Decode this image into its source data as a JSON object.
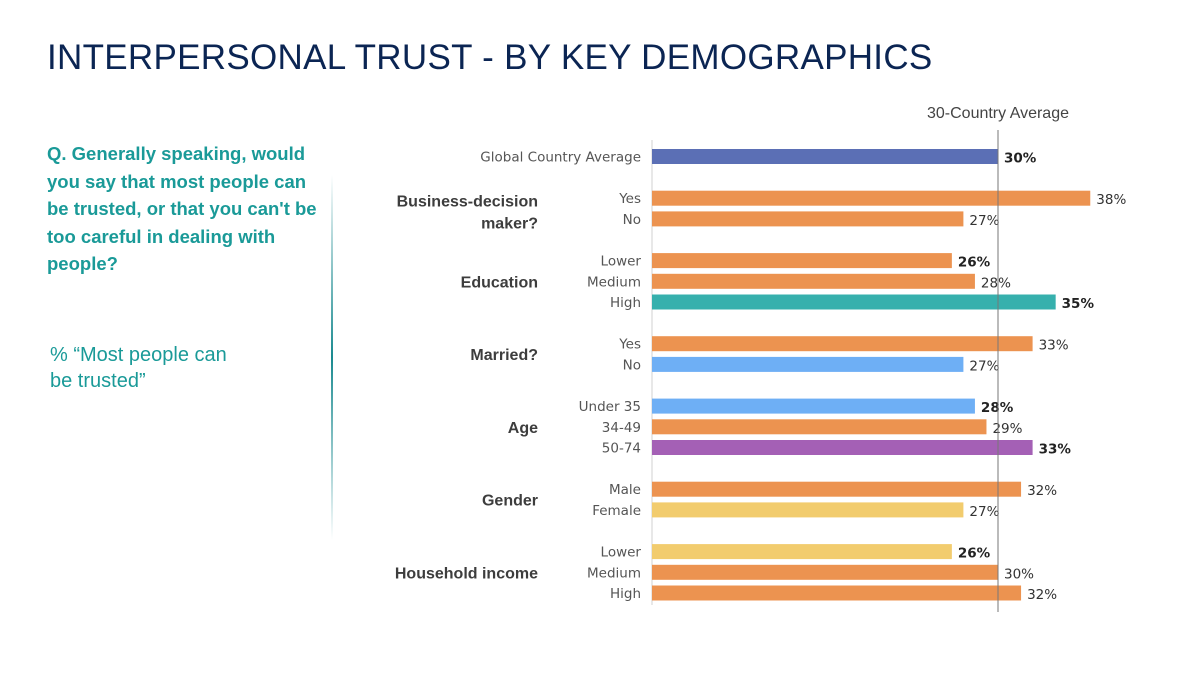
{
  "title": "INTERPERSONAL TRUST - BY KEY DEMOGRAPHICS",
  "question": "Q. Generally speaking, would you say that most people can be trusted, or that you can't be too careful in dealing with people?",
  "subnote": "% “Most people can be trusted”",
  "colors": {
    "title": "#0b2553",
    "accent_text": "#1a9a98",
    "global": "#5b6fb5",
    "default_bar": "#ec9350",
    "teal": "#36b0ad",
    "light_blue": "#6eaff5",
    "purple": "#a460b5",
    "yellow": "#f2cc6e"
  },
  "chart_data": {
    "type": "bar",
    "orientation": "horizontal",
    "title": "INTERPERSONAL TRUST - BY KEY DEMOGRAPHICS",
    "xlabel": "",
    "ylabel": "",
    "unit": "%",
    "xlim": [
      0,
      40
    ],
    "reference_line": {
      "label": "30-Country Average",
      "value": 30
    },
    "groups": [
      {
        "name": "",
        "items": [
          {
            "label": "Global Country Average",
            "value": 30,
            "color": "#5b6fb5",
            "bold": true
          }
        ]
      },
      {
        "name": "Business-decision maker?",
        "items": [
          {
            "label": "Yes",
            "value": 38,
            "color": "#ec9350",
            "bold": false
          },
          {
            "label": "No",
            "value": 27,
            "color": "#ec9350",
            "bold": false
          }
        ]
      },
      {
        "name": "Education",
        "items": [
          {
            "label": "Lower",
            "value": 26,
            "color": "#ec9350",
            "bold": true
          },
          {
            "label": "Medium",
            "value": 28,
            "color": "#ec9350",
            "bold": false
          },
          {
            "label": "High",
            "value": 35,
            "color": "#36b0ad",
            "bold": true
          }
        ]
      },
      {
        "name": "Married?",
        "items": [
          {
            "label": "Yes",
            "value": 33,
            "color": "#ec9350",
            "bold": false
          },
          {
            "label": "No",
            "value": 27,
            "color": "#6eaff5",
            "bold": false
          }
        ]
      },
      {
        "name": "Age",
        "items": [
          {
            "label": "Under 35",
            "value": 28,
            "color": "#6eaff5",
            "bold": true
          },
          {
            "label": "34-49",
            "value": 29,
            "color": "#ec9350",
            "bold": false
          },
          {
            "label": "50-74",
            "value": 33,
            "color": "#a460b5",
            "bold": true
          }
        ]
      },
      {
        "name": "Gender",
        "items": [
          {
            "label": "Male",
            "value": 32,
            "color": "#ec9350",
            "bold": false
          },
          {
            "label": "Female",
            "value": 27,
            "color": "#f2cc6e",
            "bold": false
          }
        ]
      },
      {
        "name": "Household income",
        "items": [
          {
            "label": "Lower",
            "value": 26,
            "color": "#f2cc6e",
            "bold": true
          },
          {
            "label": "Medium",
            "value": 30,
            "color": "#ec9350",
            "bold": false
          },
          {
            "label": "High",
            "value": 32,
            "color": "#ec9350",
            "bold": false
          }
        ]
      }
    ]
  }
}
